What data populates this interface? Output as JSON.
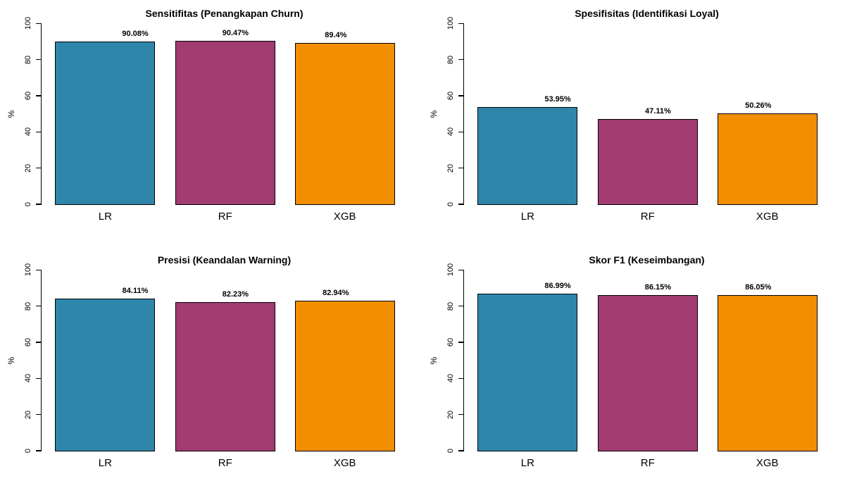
{
  "page": {
    "background": "#FFFFFF",
    "text_color": "#000000"
  },
  "palette": {
    "bar_colors": [
      "#2E86AB",
      "#A23B72",
      "#F18F01"
    ],
    "bar_border": "#000000"
  },
  "chart_data": [
    {
      "type": "bar",
      "title": "Sensitifitas (Penangkapan Churn)",
      "categories": [
        "LR",
        "RF",
        "XGB"
      ],
      "values": [
        90.08,
        90.47,
        89.4
      ],
      "value_labels": [
        "90.08%",
        "90.47%",
        "89.4%"
      ],
      "ylabel": "%",
      "ylim": [
        0,
        100
      ],
      "yticks": [
        0,
        20,
        40,
        60,
        80,
        100
      ],
      "grid": false,
      "legend": "none",
      "bar_colors": [
        "#2E86AB",
        "#A23B72",
        "#F18F01"
      ]
    },
    {
      "type": "bar",
      "title": "Spesifisitas (Identifikasi Loyal)",
      "categories": [
        "LR",
        "RF",
        "XGB"
      ],
      "values": [
        53.95,
        47.11,
        50.26
      ],
      "value_labels": [
        "53.95%",
        "47.11%",
        "50.26%"
      ],
      "ylabel": "%",
      "ylim": [
        0,
        100
      ],
      "yticks": [
        0,
        20,
        40,
        60,
        80,
        100
      ],
      "grid": false,
      "legend": "none",
      "bar_colors": [
        "#2E86AB",
        "#A23B72",
        "#F18F01"
      ]
    },
    {
      "type": "bar",
      "title": "Presisi (Keandalan Warning)",
      "categories": [
        "LR",
        "RF",
        "XGB"
      ],
      "values": [
        84.11,
        82.23,
        82.94
      ],
      "value_labels": [
        "84.11%",
        "82.23%",
        "82.94%"
      ],
      "ylabel": "%",
      "ylim": [
        0,
        100
      ],
      "yticks": [
        0,
        20,
        40,
        60,
        80,
        100
      ],
      "grid": false,
      "legend": "none",
      "bar_colors": [
        "#2E86AB",
        "#A23B72",
        "#F18F01"
      ]
    },
    {
      "type": "bar",
      "title": "Skor F1 (Keseimbangan)",
      "categories": [
        "LR",
        "RF",
        "XGB"
      ],
      "values": [
        86.99,
        86.15,
        86.05
      ],
      "value_labels": [
        "86.99%",
        "86.15%",
        "86.05%"
      ],
      "ylabel": "%",
      "ylim": [
        0,
        100
      ],
      "yticks": [
        0,
        20,
        40,
        60,
        80,
        100
      ],
      "grid": false,
      "legend": "none",
      "bar_colors": [
        "#2E86AB",
        "#A23B72",
        "#F18F01"
      ]
    }
  ]
}
